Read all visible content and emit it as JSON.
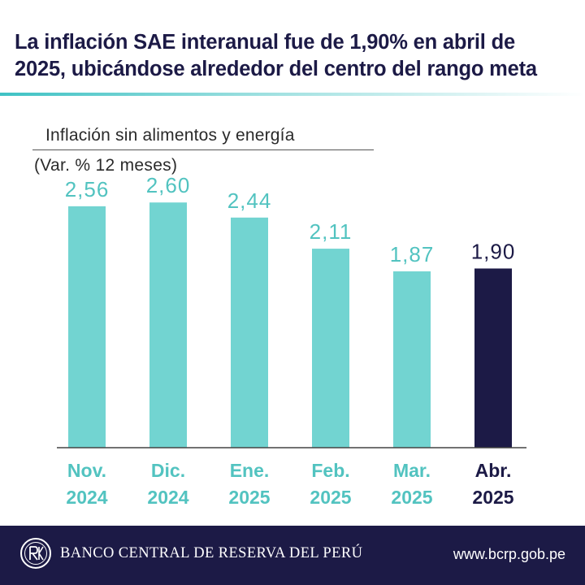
{
  "header": {
    "title_line1": "La inflación SAE interanual fue de 1,90% en abril de",
    "title_line2": "2025, ubicándose alrededor del centro del rango meta"
  },
  "chart_data": {
    "type": "bar",
    "title": "Inflación sin alimentos y energía",
    "subtitle": "(Var. % 12 meses)",
    "categories": [
      [
        "Nov.",
        "2024"
      ],
      [
        "Dic.",
        "2024"
      ],
      [
        "Ene.",
        "2025"
      ],
      [
        "Feb.",
        "2025"
      ],
      [
        "Mar.",
        "2025"
      ],
      [
        "Abr.",
        "2025"
      ]
    ],
    "values": [
      2.56,
      2.6,
      2.44,
      2.11,
      1.87,
      1.9
    ],
    "value_labels": [
      "2,56",
      "2,60",
      "2,44",
      "2,11",
      "1,87",
      "1,90"
    ],
    "highlight_index": 5,
    "colors": {
      "bar": "#72d4d1",
      "bar_highlight": "#1c1a46",
      "label": "#52c3c0",
      "label_highlight": "#1c1a46",
      "axis": "#444444"
    },
    "ylim": [
      0,
      2.8
    ],
    "xlabel": "",
    "ylabel": ""
  },
  "footer": {
    "bank_name": "BANCO CENTRAL DE RESERVA DEL PERÚ",
    "website": "www.bcrp.gob.pe",
    "logo_icon": "bcrp-seal-icon"
  }
}
